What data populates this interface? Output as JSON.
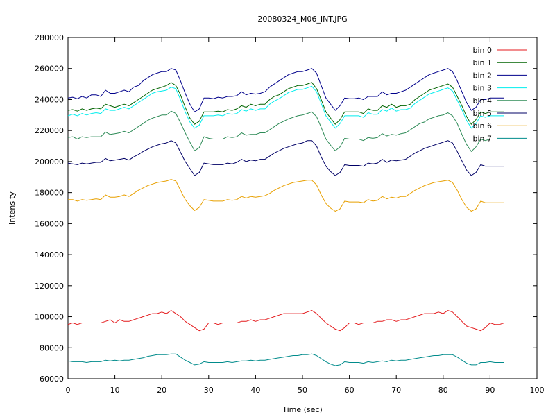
{
  "chart_data": {
    "type": "line",
    "title": "20080324_M06_INT.JPG",
    "xlabel": "Time (sec)",
    "ylabel": "Intensity",
    "xlim": [
      0,
      100
    ],
    "ylim": [
      60000,
      280000
    ],
    "xticks": [
      0,
      10,
      20,
      30,
      40,
      50,
      60,
      70,
      80,
      90,
      100
    ],
    "yticks": [
      60000,
      80000,
      100000,
      120000,
      140000,
      160000,
      180000,
      200000,
      220000,
      240000,
      260000,
      280000
    ],
    "grid": false,
    "legend_position": "top-right",
    "x": [
      0,
      1,
      2,
      3,
      4,
      5,
      6,
      7,
      8,
      9,
      10,
      11,
      12,
      13,
      14,
      15,
      16,
      17,
      18,
      19,
      20,
      21,
      22,
      23,
      24,
      25,
      26,
      27,
      28,
      29,
      30,
      31,
      32,
      33,
      34,
      35,
      36,
      37,
      38,
      39,
      40,
      41,
      42,
      43,
      44,
      45,
      46,
      47,
      48,
      49,
      50,
      51,
      52,
      53,
      54,
      55,
      56,
      57,
      58,
      59,
      60,
      61,
      62,
      63,
      64,
      65,
      66,
      67,
      68,
      69,
      70,
      71,
      72,
      73,
      74,
      75,
      76,
      77,
      78,
      79,
      80,
      81,
      82,
      83,
      84,
      85,
      86,
      87,
      88,
      89,
      90,
      91,
      92,
      93
    ],
    "series": [
      {
        "name": "bin 0",
        "color": "#e41a1c",
        "values": [
          95000,
          96000,
          95000,
          96000,
          96000,
          96000,
          96000,
          96000,
          97000,
          98000,
          96000,
          98000,
          97000,
          97000,
          98000,
          99000,
          100000,
          101000,
          102000,
          102000,
          103000,
          102000,
          104000,
          102000,
          100000,
          97000,
          95000,
          93000,
          91000,
          92000,
          96000,
          96000,
          95000,
          96000,
          96000,
          96000,
          96000,
          97000,
          97000,
          98000,
          97000,
          98000,
          98000,
          99000,
          100000,
          101000,
          102000,
          102000,
          102000,
          102000,
          102000,
          103000,
          104000,
          102000,
          99000,
          96000,
          94000,
          92000,
          91000,
          93000,
          96000,
          96000,
          95000,
          96000,
          96000,
          96000,
          97000,
          97000,
          98000,
          98000,
          97000,
          98000,
          98000,
          99000,
          100000,
          101000,
          102000,
          102000,
          102000,
          103000,
          102000,
          104000,
          103000,
          100000,
          97000,
          94000,
          93000,
          92000,
          91000,
          93000,
          96000,
          95000,
          95000,
          96000
        ]
      },
      {
        "name": "bin 1",
        "color": "#006400",
        "values": [
          233000,
          233500,
          232500,
          234000,
          233000,
          234000,
          234500,
          234000,
          237000,
          236000,
          235000,
          236000,
          237000,
          236000,
          238000,
          240000,
          242000,
          244000,
          246000,
          247000,
          248000,
          249000,
          251000,
          249000,
          243000,
          235000,
          228000,
          224000,
          226000,
          232000,
          232000,
          232000,
          232500,
          232000,
          233500,
          233000,
          234000,
          236000,
          235000,
          237000,
          236000,
          237000,
          237000,
          240000,
          242000,
          243000,
          245000,
          247000,
          248000,
          249000,
          249000,
          250000,
          251000,
          247000,
          240000,
          232000,
          228000,
          224000,
          227000,
          232000,
          232000,
          232000,
          232000,
          231000,
          234000,
          233000,
          233000,
          236000,
          235000,
          237000,
          235000,
          236000,
          236000,
          237000,
          240000,
          242000,
          244000,
          246000,
          247000,
          248000,
          249000,
          250000,
          248000,
          242000,
          236000,
          229000,
          224000,
          227000,
          232000,
          231000,
          232000,
          232000,
          232000,
          232000
        ]
      },
      {
        "name": "bin 2",
        "color": "#00008b",
        "values": [
          241000,
          241500,
          240500,
          242000,
          241000,
          243000,
          243000,
          242000,
          246000,
          244000,
          244000,
          245000,
          246000,
          245000,
          248000,
          249000,
          252000,
          254000,
          256000,
          257000,
          258000,
          258000,
          260000,
          259000,
          252000,
          244000,
          237000,
          232000,
          234000,
          241000,
          241000,
          240500,
          241500,
          241000,
          242000,
          242000,
          242500,
          245000,
          243000,
          244000,
          243500,
          244000,
          245000,
          248000,
          250000,
          252000,
          254000,
          256000,
          257000,
          258000,
          258000,
          259000,
          260000,
          257000,
          249000,
          241000,
          237000,
          233000,
          236000,
          241000,
          240500,
          240500,
          241000,
          240000,
          242000,
          242000,
          242000,
          245000,
          243000,
          244000,
          244000,
          245000,
          246000,
          248000,
          250000,
          252000,
          254000,
          256000,
          257000,
          258000,
          259000,
          260000,
          258000,
          252000,
          245000,
          238000,
          233000,
          235000,
          240000,
          240000,
          241000,
          241000,
          241000,
          241000
        ]
      },
      {
        "name": "bin 3",
        "color": "#00eeee",
        "values": [
          229500,
          230500,
          229500,
          231000,
          230000,
          231000,
          231500,
          231000,
          234000,
          233000,
          233000,
          234000,
          235000,
          234000,
          236000,
          238000,
          240000,
          242000,
          244000,
          245000,
          245500,
          246000,
          248000,
          247000,
          240000,
          232000,
          225500,
          221500,
          223500,
          229500,
          229500,
          229500,
          230000,
          229500,
          231000,
          230500,
          231000,
          233500,
          232500,
          234000,
          233000,
          234000,
          234000,
          237000,
          239000,
          240500,
          242500,
          244500,
          245500,
          246500,
          246500,
          247500,
          248500,
          245000,
          237500,
          229500,
          225500,
          221500,
          224500,
          229500,
          229500,
          229500,
          229500,
          228500,
          231500,
          230500,
          230500,
          233500,
          232500,
          234500,
          232500,
          233500,
          233500,
          234500,
          237500,
          239500,
          241500,
          243500,
          244500,
          245500,
          246500,
          247500,
          245500,
          239500,
          233500,
          226500,
          221500,
          224500,
          229500,
          228500,
          229500,
          229500,
          229500,
          229500
        ]
      },
      {
        "name": "bin 4",
        "color": "#2e8b57",
        "values": [
          215500,
          216000,
          214500,
          216000,
          215500,
          216000,
          216000,
          216000,
          219000,
          217500,
          218000,
          218500,
          219500,
          218500,
          220500,
          222500,
          224500,
          226500,
          228000,
          229000,
          230000,
          230000,
          232500,
          231000,
          225000,
          218500,
          212500,
          207000,
          209000,
          216000,
          215000,
          214500,
          214500,
          214500,
          216000,
          215500,
          216000,
          218500,
          217000,
          217500,
          217500,
          218500,
          218500,
          220500,
          222500,
          224500,
          226000,
          227500,
          228500,
          229500,
          230000,
          231000,
          232000,
          229000,
          222000,
          214500,
          210500,
          207000,
          209500,
          215000,
          214500,
          214500,
          214500,
          213500,
          215500,
          215000,
          215500,
          218000,
          216500,
          217500,
          217000,
          218000,
          218500,
          220500,
          222500,
          224500,
          225500,
          227500,
          228500,
          229500,
          230000,
          231500,
          229500,
          224500,
          217500,
          211000,
          206500,
          209500,
          214500,
          213500,
          214500,
          214500,
          214500,
          214500
        ]
      },
      {
        "name": "bin 5",
        "color": "#000066",
        "values": [
          199000,
          198500,
          198000,
          199000,
          198500,
          199000,
          199500,
          199500,
          202000,
          200500,
          201000,
          201500,
          202000,
          201000,
          203000,
          204500,
          206500,
          208000,
          209500,
          210500,
          211500,
          212000,
          213500,
          212000,
          206000,
          200000,
          195500,
          191000,
          193000,
          199000,
          198500,
          198000,
          198000,
          198000,
          199000,
          198500,
          199500,
          201500,
          200000,
          201000,
          200500,
          201500,
          201500,
          203500,
          205500,
          207000,
          208500,
          209500,
          210500,
          211500,
          212000,
          213500,
          213500,
          210000,
          203000,
          197000,
          193500,
          191000,
          193000,
          198000,
          197500,
          197500,
          197500,
          197000,
          199000,
          198500,
          199000,
          201500,
          199500,
          201000,
          200500,
          201000,
          201500,
          203500,
          205500,
          207000,
          208500,
          209500,
          210500,
          211500,
          212500,
          213500,
          212000,
          206500,
          200500,
          194500,
          191000,
          193000,
          198000,
          197000,
          197000,
          197000,
          197000,
          197000
        ]
      },
      {
        "name": "bin 6",
        "color": "#e8a000",
        "values": [
          175500,
          175500,
          174500,
          175500,
          175000,
          175500,
          176000,
          175500,
          178500,
          177000,
          177000,
          177500,
          178500,
          177500,
          179500,
          181500,
          183000,
          184500,
          185500,
          186500,
          187000,
          187500,
          188500,
          187500,
          181500,
          175500,
          171500,
          168500,
          170500,
          175500,
          175000,
          174500,
          174500,
          174500,
          175500,
          175000,
          175500,
          177500,
          176500,
          177500,
          177000,
          177500,
          178000,
          179500,
          181500,
          183000,
          184500,
          185500,
          186500,
          187000,
          187500,
          188000,
          188000,
          185000,
          178500,
          173000,
          170000,
          168000,
          169500,
          174500,
          174000,
          174000,
          174000,
          173500,
          175500,
          174500,
          175000,
          177500,
          176000,
          177000,
          176500,
          177500,
          177500,
          179500,
          181500,
          183000,
          184500,
          185500,
          186500,
          187000,
          187500,
          188000,
          186500,
          181500,
          175500,
          170500,
          168000,
          169500,
          174500,
          173500,
          173500,
          173500,
          173500,
          173500
        ]
      },
      {
        "name": "bin 7",
        "color": "#008b8b",
        "values": [
          71500,
          71000,
          71000,
          71000,
          70500,
          71000,
          71000,
          71000,
          72000,
          71500,
          72000,
          71500,
          72000,
          72000,
          72500,
          73000,
          73500,
          74500,
          75000,
          75500,
          75500,
          75500,
          76000,
          76000,
          74000,
          72000,
          70500,
          69000,
          69500,
          71000,
          70500,
          70500,
          70500,
          70500,
          71000,
          70500,
          71000,
          71500,
          71500,
          72000,
          71500,
          72000,
          72000,
          72500,
          73000,
          73500,
          74000,
          74500,
          75000,
          75000,
          75500,
          75500,
          76000,
          75000,
          73000,
          71000,
          69500,
          68500,
          69000,
          71000,
          70500,
          70500,
          70500,
          70000,
          71000,
          70500,
          71000,
          71500,
          71000,
          72000,
          71500,
          72000,
          72000,
          72500,
          73000,
          73500,
          74000,
          74500,
          75000,
          75000,
          75500,
          75500,
          75500,
          74000,
          72000,
          70000,
          69000,
          69000,
          70500,
          70500,
          71000,
          70500,
          70500,
          70500
        ]
      }
    ]
  }
}
